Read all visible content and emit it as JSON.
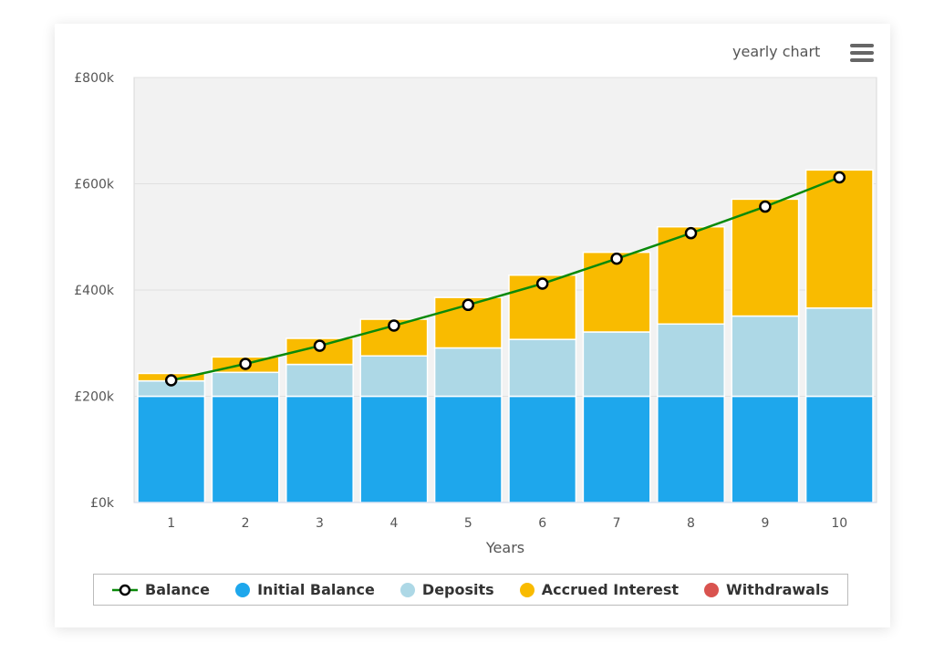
{
  "menu": {
    "label": "yearly chart",
    "icon": "hamburger-menu-icon"
  },
  "chart_data": {
    "type": "bar",
    "stacked": true,
    "xlabel": "Years",
    "ylabel": "",
    "categories": [
      "1",
      "2",
      "3",
      "4",
      "5",
      "6",
      "7",
      "8",
      "9",
      "10"
    ],
    "ylim": [
      0,
      800
    ],
    "yticks": [
      "£0k",
      "£200k",
      "£400k",
      "£600k",
      "£800k"
    ],
    "ytick_values": [
      0,
      200,
      400,
      600,
      800
    ],
    "grid": true,
    "legend_position": "bottom",
    "series": [
      {
        "name": "Initial Balance",
        "type": "bar",
        "color": "#1ea7ec",
        "values": [
          200,
          200,
          200,
          200,
          200,
          200,
          200,
          200,
          200,
          200
        ]
      },
      {
        "name": "Deposits",
        "type": "bar",
        "color": "#add8e6",
        "values": [
          29,
          45,
          60,
          76,
          91,
          107,
          121,
          136,
          151,
          166
        ]
      },
      {
        "name": "Accrued Interest",
        "type": "bar",
        "color": "#f9bb00",
        "values": [
          14,
          29,
          49,
          69,
          95,
          121,
          150,
          183,
          220,
          260
        ]
      },
      {
        "name": "Withdrawals",
        "type": "bar",
        "color": "#d9534f",
        "values": [
          0,
          0,
          0,
          0,
          0,
          0,
          0,
          0,
          0,
          0
        ]
      },
      {
        "name": "Balance",
        "type": "line",
        "color": "#0a8a0a",
        "values": [
          230,
          261,
          295,
          333,
          372,
          412,
          459,
          507,
          557,
          612
        ]
      }
    ]
  }
}
